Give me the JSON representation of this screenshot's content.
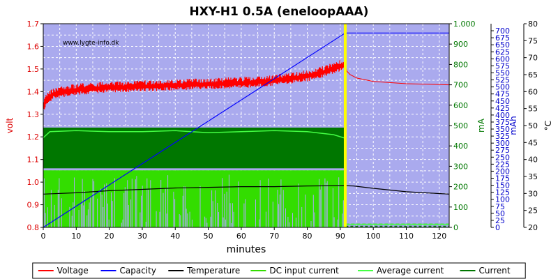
{
  "chart_data": {
    "type": "line",
    "title": "HXY-H1 0.5A (eneloopAAA)",
    "watermark": "www.lygte-info.dk",
    "xlabel": "minutes",
    "xlim": [
      0,
      123
    ],
    "xticks": [
      0,
      10,
      20,
      30,
      40,
      50,
      60,
      70,
      80,
      90,
      100,
      110,
      120
    ],
    "grid": true,
    "charge_end_minute": 91.5,
    "axes": {
      "volt": {
        "label": "volt",
        "color": "#dd0000",
        "range": [
          0.8,
          1.7
        ],
        "ticks": [
          "0.8",
          "0.9",
          "1.0",
          "1.1",
          "1.2",
          "1.3",
          "1.4",
          "1.5",
          "1.6",
          "1.7"
        ]
      },
      "ma": {
        "label": "mA",
        "color": "#007700",
        "range": [
          0,
          1000
        ],
        "ticks": [
          "0",
          "100",
          "200",
          "300",
          "400",
          "500",
          "600",
          "700",
          "800",
          "900",
          "1.000"
        ]
      },
      "mah": {
        "label": "mAh",
        "color": "#0000cc",
        "range": [
          0,
          725
        ],
        "ticks": [
          "0",
          "25",
          "50",
          "75",
          "100",
          "125",
          "150",
          "175",
          "200",
          "225",
          "250",
          "275",
          "300",
          "325",
          "350",
          "375",
          "400",
          "425",
          "450",
          "475",
          "500",
          "525",
          "550",
          "575",
          "600",
          "625",
          "650",
          "675",
          "700"
        ]
      },
      "temp": {
        "label": "°C",
        "color": "#000000",
        "range": [
          20,
          80
        ],
        "ticks": [
          "20",
          "25",
          "30",
          "35",
          "40",
          "45",
          "50",
          "55",
          "60",
          "65",
          "70",
          "75",
          "80"
        ]
      }
    },
    "series": [
      {
        "name": "Voltage",
        "axis": "volt",
        "color": "#ff0000",
        "x": [
          0,
          1,
          3,
          6,
          10,
          20,
          30,
          40,
          50,
          60,
          70,
          80,
          85,
          88,
          90,
          91,
          91.5,
          92,
          93,
          95,
          100,
          110,
          123
        ],
        "y": [
          1.33,
          1.37,
          1.39,
          1.4,
          1.41,
          1.42,
          1.425,
          1.43,
          1.435,
          1.44,
          1.45,
          1.47,
          1.49,
          1.505,
          1.515,
          1.52,
          1.52,
          1.49,
          1.475,
          1.46,
          1.445,
          1.435,
          1.43
        ],
        "noise_band_until_minute": 91.5
      },
      {
        "name": "Capacity",
        "axis": "mah",
        "color": "#0000ff",
        "x": [
          0,
          91.5,
          123
        ],
        "y": [
          0,
          692,
          692
        ]
      },
      {
        "name": "Temperature",
        "axis": "temp",
        "color": "#000000",
        "x": [
          0,
          10,
          20,
          30,
          40,
          50,
          60,
          70,
          80,
          91,
          94,
          100,
          110,
          123
        ],
        "y": [
          29.8,
          30.2,
          30.8,
          31.2,
          31.6,
          31.8,
          32.0,
          32.0,
          32.2,
          32.3,
          32.2,
          31.5,
          30.5,
          29.8
        ]
      },
      {
        "name": "DC input current",
        "axis": "ma",
        "color": "#33dd00",
        "x": [
          0,
          91.5,
          91.6,
          123
        ],
        "y": [
          280,
          280,
          15,
          15
        ]
      },
      {
        "name": "Average current",
        "axis": "ma",
        "color": "#44ff44",
        "x": [
          0,
          2,
          10,
          20,
          30,
          40,
          50,
          60,
          70,
          80,
          88,
          91,
          91.5,
          91.6,
          123
        ],
        "y": [
          440,
          470,
          475,
          470,
          470,
          475,
          465,
          470,
          475,
          470,
          455,
          440,
          440,
          15,
          15
        ]
      },
      {
        "name": "Current",
        "axis": "ma",
        "color": "#007700",
        "x": [
          0,
          91.5,
          91.6,
          123
        ],
        "y": [
          490,
          490,
          5,
          5
        ],
        "band_min": 290
      }
    ],
    "legend": {
      "placement": "bottom",
      "items": [
        {
          "label": "Voltage",
          "color": "#ff0000"
        },
        {
          "label": "Capacity",
          "color": "#0000ff"
        },
        {
          "label": "Temperature",
          "color": "#000000"
        },
        {
          "label": "DC input current",
          "color": "#33dd00"
        },
        {
          "label": "Average current",
          "color": "#44ff44"
        },
        {
          "label": "Current",
          "color": "#007700"
        }
      ]
    },
    "colors": {
      "plot_background": "#aaaaee",
      "grid": "#ffffff",
      "end_marker": "#ffff00"
    }
  }
}
